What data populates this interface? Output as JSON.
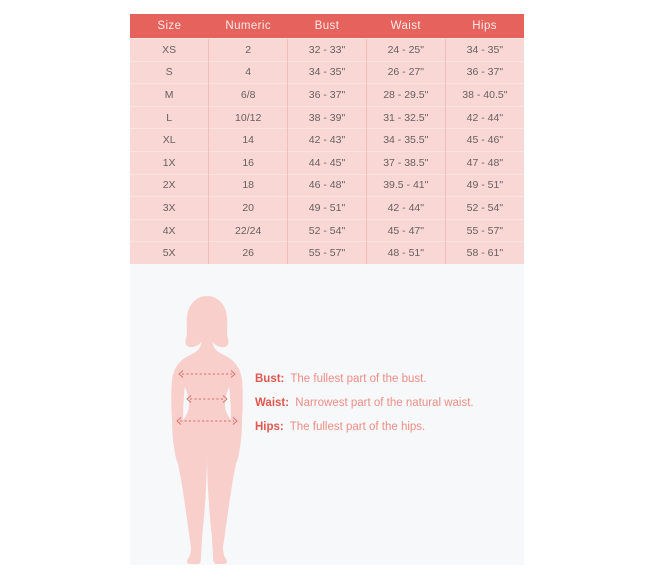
{
  "table": {
    "headers": [
      "Size",
      "Numeric",
      "Bust",
      "Waist",
      "Hips"
    ],
    "rows": [
      [
        "XS",
        "2",
        "32 - 33\"",
        "24 - 25\"",
        "34 - 35\""
      ],
      [
        "S",
        "4",
        "34 - 35\"",
        "26 - 27\"",
        "36 - 37\""
      ],
      [
        "M",
        "6/8",
        "36 - 37\"",
        "28 - 29.5\"",
        "38 - 40.5\""
      ],
      [
        "L",
        "10/12",
        "38 - 39\"",
        "31 - 32.5\"",
        "42 - 44\""
      ],
      [
        "XL",
        "14",
        "42 - 43\"",
        "34 - 35.5\"",
        "45 - 46\""
      ],
      [
        "1X",
        "16",
        "44 - 45\"",
        "37 - 38.5\"",
        "47 - 48\""
      ],
      [
        "2X",
        "18",
        "46 - 48\"",
        "39.5 - 41\"",
        "49 - 51\""
      ],
      [
        "3X",
        "20",
        "49 - 51\"",
        "42 - 44\"",
        "52 - 54\""
      ],
      [
        "4X",
        "22/24",
        "52 - 54\"",
        "45 - 47\"",
        "55 - 57\""
      ],
      [
        "5X",
        "26",
        "55 - 57\"",
        "48 - 51\"",
        "58 - 61\""
      ]
    ]
  },
  "chart_data": {
    "type": "table",
    "title": "Size chart",
    "columns": [
      "Size",
      "Numeric",
      "Bust",
      "Waist",
      "Hips"
    ],
    "rows": [
      [
        "XS",
        "2",
        "32 - 33\"",
        "24 - 25\"",
        "34 - 35\""
      ],
      [
        "S",
        "4",
        "34 - 35\"",
        "26 - 27\"",
        "36 - 37\""
      ],
      [
        "M",
        "6/8",
        "36 - 37\"",
        "28 - 29.5\"",
        "38 - 40.5\""
      ],
      [
        "L",
        "10/12",
        "38 - 39\"",
        "31 - 32.5\"",
        "42 - 44\""
      ],
      [
        "XL",
        "14",
        "42 - 43\"",
        "34 - 35.5\"",
        "45 - 46\""
      ],
      [
        "1X",
        "16",
        "44 - 45\"",
        "37 - 38.5\"",
        "47 - 48\""
      ],
      [
        "2X",
        "18",
        "46 - 48\"",
        "39.5 - 41\"",
        "49 - 51\""
      ],
      [
        "3X",
        "20",
        "49 - 51\"",
        "42 - 44\"",
        "52 - 54\""
      ],
      [
        "4X",
        "22/24",
        "52 - 54\"",
        "45 - 47\"",
        "55 - 57\""
      ],
      [
        "5X",
        "26",
        "55 - 57\"",
        "48 - 51\"",
        "58 - 61\""
      ]
    ]
  },
  "legend": [
    {
      "label": "Bust:",
      "text": "The fullest part of the bust."
    },
    {
      "label": "Waist:",
      "text": "Narrowest part of the natural waist."
    },
    {
      "label": "Hips:",
      "text": "The fullest part of the hips."
    }
  ],
  "figure": {
    "name": "female-body-silhouette",
    "measure_lines": [
      "bust",
      "waist",
      "hips"
    ]
  },
  "colors": {
    "page_bg": "#ffffff",
    "panel_bg": "#f6f8f9",
    "header_bg": "#e5625d",
    "header_text": "#fceae8",
    "row_bg": "#f9d7d5",
    "row_border_v": "#f0bebb",
    "row_border_h": "#fae4e2",
    "cell_text": "#686060",
    "silhouette": "#f8cfcb",
    "dash_line": "#d96e67",
    "legend_label": "#e25750",
    "legend_text": "#ef8d85"
  }
}
